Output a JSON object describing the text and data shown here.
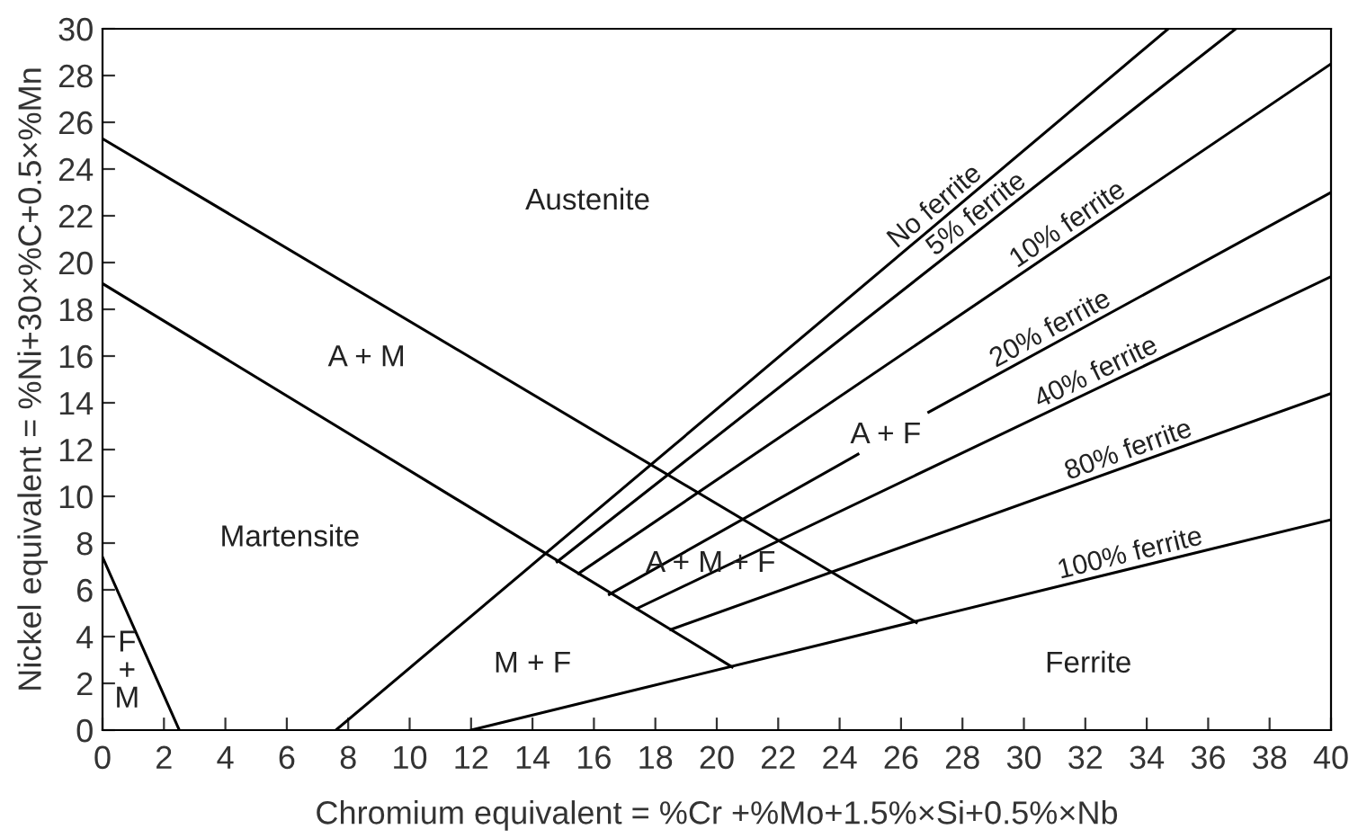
{
  "chart_data": {
    "type": "line",
    "xlabel": "Chromium equivalent = %Cr +%Mo+1.5%×Si+0.5%×Nb",
    "ylabel": "Nickel equivalent = %Ni+30×%C+0.5×%Mn",
    "xlim": [
      0,
      40
    ],
    "ylim": [
      0,
      30
    ],
    "xticks": [
      0,
      2,
      4,
      6,
      8,
      10,
      12,
      14,
      16,
      18,
      20,
      22,
      24,
      26,
      28,
      30,
      32,
      34,
      36,
      38,
      40
    ],
    "yticks": [
      0,
      2,
      4,
      6,
      8,
      10,
      12,
      14,
      16,
      18,
      20,
      22,
      24,
      26,
      28,
      30
    ],
    "grid": false,
    "legend": false,
    "marker": "none",
    "line_style": "solid",
    "series": [
      {
        "color": "#000000",
        "x": [
          0,
          26.5
        ],
        "values": [
          25.3,
          4.6
        ]
      },
      {
        "color": "#000000",
        "x": [
          0,
          20.5
        ],
        "values": [
          19.1,
          2.7
        ]
      },
      {
        "color": "#000000",
        "x": [
          0,
          2.5
        ],
        "values": [
          7.4,
          0
        ]
      },
      {
        "name": "No ferrite",
        "color": "#000000",
        "x": [
          7.6,
          34.7
        ],
        "values": [
          0,
          30
        ]
      },
      {
        "name": "5% ferrite",
        "color": "#000000",
        "x": [
          14.8,
          36.9
        ],
        "values": [
          7.2,
          30
        ]
      },
      {
        "name": "10% ferrite",
        "color": "#000000",
        "x": [
          15.5,
          40
        ],
        "values": [
          6.7,
          28.5
        ]
      },
      {
        "name": "20% ferrite",
        "color": "#000000",
        "x": [
          16.5,
          24.6,
          25.7,
          26.9,
          40
        ],
        "values": [
          5.8,
          11.8,
          null,
          13.6,
          23.0
        ]
      },
      {
        "name": "40% ferrite",
        "color": "#000000",
        "x": [
          17.4,
          40
        ],
        "values": [
          5.2,
          19.4
        ]
      },
      {
        "name": "80% ferrite",
        "color": "#000000",
        "x": [
          18.5,
          40
        ],
        "values": [
          4.3,
          14.4
        ]
      },
      {
        "name": "100% ferrite",
        "color": "#000000",
        "x": [
          12,
          40
        ],
        "values": [
          0,
          9.0
        ]
      }
    ],
    "annotations": [
      "Austenite",
      "A + M",
      "Martensite",
      "M + F",
      "A + F",
      "A + M + F",
      "Ferrite",
      "F\n+\nM"
    ]
  }
}
